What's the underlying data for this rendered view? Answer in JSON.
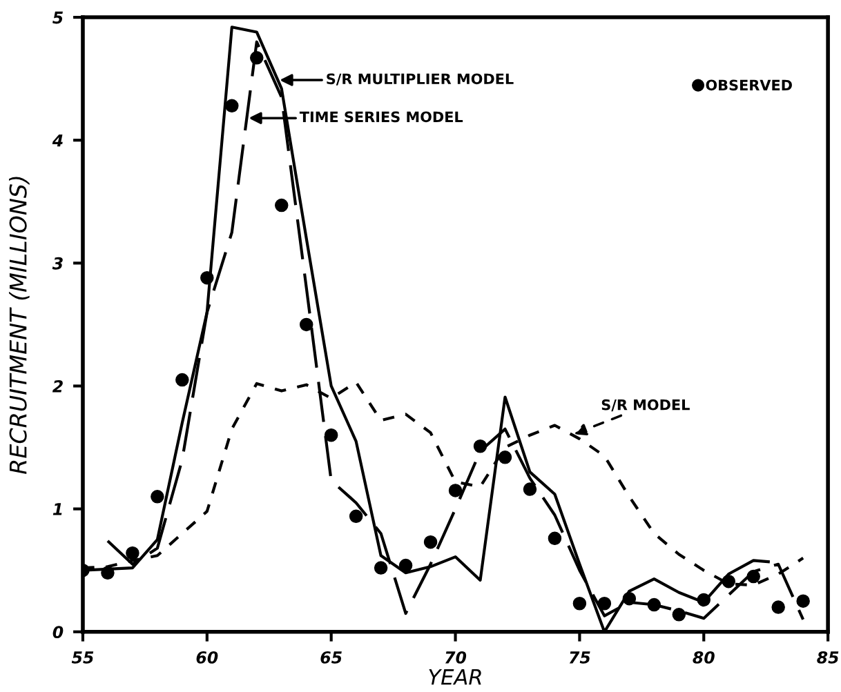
{
  "chart_data": {
    "type": "line",
    "xlabel": "YEAR",
    "ylabel": "RECRUITMENT (MILLIONS)",
    "xlim": [
      55,
      85
    ],
    "xticks": [
      55,
      60,
      65,
      70,
      75,
      80,
      85
    ],
    "ylim": [
      0,
      5
    ],
    "yticks": [
      0,
      1,
      2,
      3,
      4,
      5
    ],
    "grid": false,
    "legend": "top right",
    "series": [
      {
        "name": "S/R MULTIPLIER MODEL",
        "line_style": "solid",
        "color": "#000000",
        "x": [
          55,
          56,
          57,
          58,
          59,
          60,
          61,
          62,
          63,
          64,
          65,
          66,
          67,
          68,
          69,
          70,
          71,
          72,
          73,
          74,
          75,
          76,
          77,
          78,
          79,
          80,
          81,
          82,
          82.6
        ],
        "values": [
          0.5,
          0.51,
          0.52,
          0.75,
          1.7,
          2.6,
          4.92,
          4.88,
          4.42,
          3.2,
          2.0,
          1.55,
          0.62,
          0.48,
          0.53,
          0.61,
          0.42,
          1.91,
          1.3,
          1.12,
          0.55,
          0.0,
          0.33,
          0.43,
          0.32,
          0.24,
          0.47,
          0.58,
          0.57
        ]
      },
      {
        "name": "TIME SERIES MODEL",
        "line_style": "dashed",
        "color": "#000000",
        "x": [
          56,
          57,
          58,
          59,
          60,
          61,
          62,
          63,
          64,
          65,
          66,
          67,
          68,
          69,
          70,
          71,
          72,
          73,
          74,
          75,
          76,
          77,
          78,
          79,
          80,
          81,
          82,
          83,
          84
        ],
        "values": [
          0.74,
          0.55,
          0.68,
          1.4,
          2.6,
          3.25,
          4.8,
          4.35,
          2.8,
          1.23,
          1.05,
          0.8,
          0.15,
          0.55,
          1.0,
          1.47,
          1.65,
          1.25,
          0.95,
          0.5,
          0.13,
          0.24,
          0.22,
          0.17,
          0.11,
          0.3,
          0.49,
          0.55,
          0.1
        ]
      },
      {
        "name": "S/R MODEL",
        "line_style": "dotted",
        "color": "#000000",
        "x": [
          55,
          56,
          57,
          58,
          59,
          60,
          61,
          62,
          63,
          64,
          65,
          66,
          67,
          68,
          69,
          70,
          71,
          72,
          73,
          74,
          75,
          76,
          77,
          78,
          79,
          80,
          81,
          82,
          83,
          84
        ],
        "values": [
          0.52,
          0.53,
          0.58,
          0.62,
          0.8,
          0.98,
          1.65,
          2.02,
          1.96,
          2.01,
          1.9,
          2.03,
          1.72,
          1.77,
          1.62,
          1.22,
          1.18,
          1.5,
          1.6,
          1.68,
          1.57,
          1.43,
          1.1,
          0.8,
          0.63,
          0.5,
          0.39,
          0.38,
          0.47,
          0.6
        ]
      },
      {
        "type": "scatter",
        "name": "OBSERVED",
        "marker": "circle",
        "color": "#000000",
        "x": [
          55,
          56,
          57,
          58,
          59,
          60,
          61,
          62,
          63,
          64,
          65,
          66,
          67,
          68,
          69,
          70,
          71,
          72,
          73,
          74,
          75,
          76,
          77,
          78,
          79,
          80,
          81,
          82,
          83,
          84
        ],
        "values": [
          0.5,
          0.48,
          0.64,
          1.1,
          2.05,
          2.88,
          4.28,
          4.67,
          3.47,
          2.5,
          1.6,
          0.94,
          0.52,
          0.54,
          0.73,
          1.15,
          1.51,
          1.42,
          1.16,
          0.76,
          0.23,
          0.23,
          0.27,
          0.22,
          0.14,
          0.26,
          0.41,
          0.45,
          0.2,
          0.25
        ]
      }
    ]
  }
}
